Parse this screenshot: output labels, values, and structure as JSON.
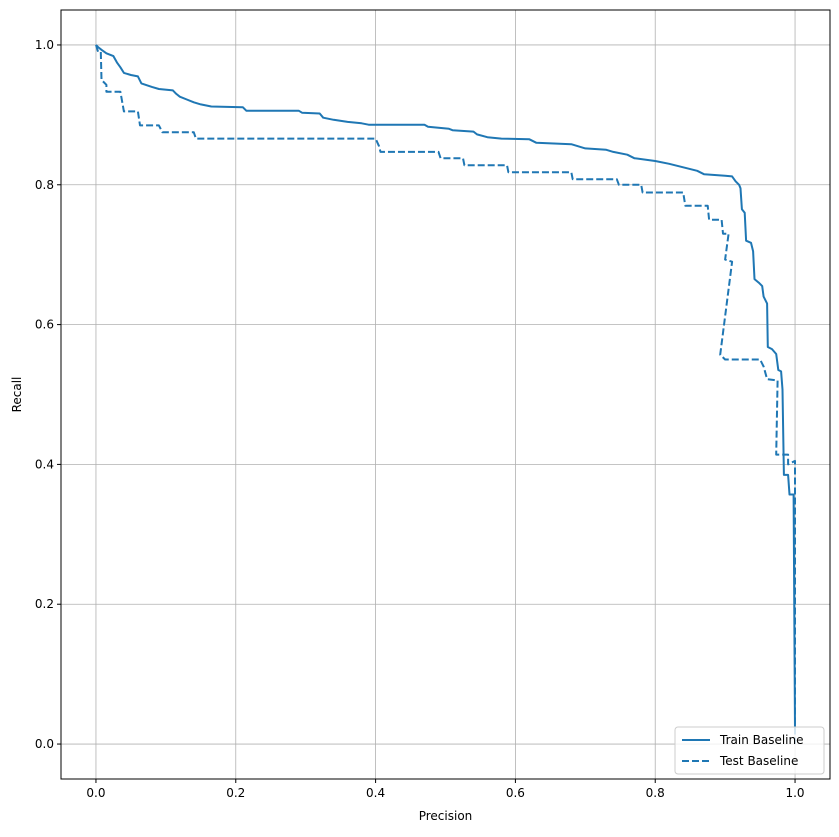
{
  "chart_data": {
    "type": "line",
    "title": "",
    "xlabel": "Precision",
    "ylabel": "Recall",
    "xlim": [
      -0.05,
      1.05
    ],
    "ylim": [
      -0.05,
      1.05
    ],
    "xticks": [
      "0.0",
      "0.2",
      "0.4",
      "0.6",
      "0.8",
      "1.0"
    ],
    "yticks": [
      "0.0",
      "0.2",
      "0.4",
      "0.6",
      "0.8",
      "1.0"
    ],
    "grid": true,
    "legend_position": "bottom-right",
    "series": [
      {
        "name": "Train Baseline",
        "color": "#1f77b4",
        "linestyle": "solid",
        "points": [
          [
            0,
            1.0
          ],
          [
            0.003,
            0.997
          ],
          [
            0.008,
            0.993
          ],
          [
            0.015,
            0.988
          ],
          [
            0.025,
            0.984
          ],
          [
            0.03,
            0.975
          ],
          [
            0.035,
            0.968
          ],
          [
            0.04,
            0.96
          ],
          [
            0.05,
            0.957
          ],
          [
            0.06,
            0.955
          ],
          [
            0.065,
            0.945
          ],
          [
            0.08,
            0.94
          ],
          [
            0.09,
            0.937
          ],
          [
            0.11,
            0.935
          ],
          [
            0.115,
            0.93
          ],
          [
            0.12,
            0.926
          ],
          [
            0.13,
            0.922
          ],
          [
            0.14,
            0.918
          ],
          [
            0.15,
            0.915
          ],
          [
            0.165,
            0.912
          ],
          [
            0.21,
            0.911
          ],
          [
            0.215,
            0.906
          ],
          [
            0.29,
            0.906
          ],
          [
            0.295,
            0.903
          ],
          [
            0.32,
            0.902
          ],
          [
            0.325,
            0.896
          ],
          [
            0.34,
            0.893
          ],
          [
            0.36,
            0.89
          ],
          [
            0.38,
            0.888
          ],
          [
            0.39,
            0.886
          ],
          [
            0.47,
            0.886
          ],
          [
            0.475,
            0.883
          ],
          [
            0.505,
            0.88
          ],
          [
            0.51,
            0.878
          ],
          [
            0.54,
            0.876
          ],
          [
            0.545,
            0.872
          ],
          [
            0.56,
            0.868
          ],
          [
            0.58,
            0.866
          ],
          [
            0.62,
            0.865
          ],
          [
            0.63,
            0.86
          ],
          [
            0.68,
            0.858
          ],
          [
            0.69,
            0.855
          ],
          [
            0.7,
            0.852
          ],
          [
            0.73,
            0.85
          ],
          [
            0.74,
            0.847
          ],
          [
            0.76,
            0.843
          ],
          [
            0.77,
            0.838
          ],
          [
            0.8,
            0.834
          ],
          [
            0.82,
            0.83
          ],
          [
            0.84,
            0.825
          ],
          [
            0.86,
            0.82
          ],
          [
            0.87,
            0.815
          ],
          [
            0.9,
            0.813
          ],
          [
            0.91,
            0.812
          ],
          [
            0.915,
            0.805
          ],
          [
            0.92,
            0.8
          ],
          [
            0.922,
            0.795
          ],
          [
            0.924,
            0.765
          ],
          [
            0.928,
            0.76
          ],
          [
            0.93,
            0.72
          ],
          [
            0.937,
            0.717
          ],
          [
            0.94,
            0.705
          ],
          [
            0.942,
            0.665
          ],
          [
            0.948,
            0.66
          ],
          [
            0.953,
            0.655
          ],
          [
            0.955,
            0.64
          ],
          [
            0.96,
            0.63
          ],
          [
            0.961,
            0.568
          ],
          [
            0.967,
            0.565
          ],
          [
            0.973,
            0.558
          ],
          [
            0.976,
            0.535
          ],
          [
            0.98,
            0.533
          ],
          [
            0.982,
            0.507
          ],
          [
            0.984,
            0.385
          ],
          [
            0.99,
            0.385
          ],
          [
            0.992,
            0.357
          ],
          [
            0.998,
            0.357
          ],
          [
            1.0,
            0.02
          ]
        ]
      },
      {
        "name": "Test Baseline",
        "color": "#1f77b4",
        "linestyle": "dashed",
        "points": [
          [
            0,
            1.0
          ],
          [
            0.003,
            0.99
          ],
          [
            0.007,
            0.99
          ],
          [
            0.008,
            0.95
          ],
          [
            0.015,
            0.943
          ],
          [
            0.015,
            0.933
          ],
          [
            0.035,
            0.933
          ],
          [
            0.04,
            0.905
          ],
          [
            0.06,
            0.905
          ],
          [
            0.063,
            0.885
          ],
          [
            0.09,
            0.885
          ],
          [
            0.095,
            0.875
          ],
          [
            0.14,
            0.875
          ],
          [
            0.143,
            0.866
          ],
          [
            0.4,
            0.866
          ],
          [
            0.405,
            0.855
          ],
          [
            0.407,
            0.847
          ],
          [
            0.49,
            0.847
          ],
          [
            0.493,
            0.838
          ],
          [
            0.525,
            0.838
          ],
          [
            0.527,
            0.828
          ],
          [
            0.588,
            0.828
          ],
          [
            0.59,
            0.818
          ],
          [
            0.68,
            0.818
          ],
          [
            0.682,
            0.808
          ],
          [
            0.745,
            0.808
          ],
          [
            0.748,
            0.8
          ],
          [
            0.78,
            0.8
          ],
          [
            0.782,
            0.789
          ],
          [
            0.84,
            0.789
          ],
          [
            0.843,
            0.77
          ],
          [
            0.875,
            0.77
          ],
          [
            0.877,
            0.75
          ],
          [
            0.895,
            0.75
          ],
          [
            0.897,
            0.73
          ],
          [
            0.905,
            0.73
          ],
          [
            0.9,
            0.693
          ],
          [
            0.91,
            0.69
          ],
          [
            0.893,
            0.557
          ],
          [
            0.9,
            0.55
          ],
          [
            0.95,
            0.55
          ],
          [
            0.955,
            0.54
          ],
          [
            0.96,
            0.522
          ],
          [
            0.975,
            0.52
          ],
          [
            0.973,
            0.414
          ],
          [
            0.99,
            0.414
          ],
          [
            0.99,
            0.4
          ],
          [
            1.0,
            0.405
          ],
          [
            1.0,
            0.0
          ]
        ]
      }
    ]
  }
}
